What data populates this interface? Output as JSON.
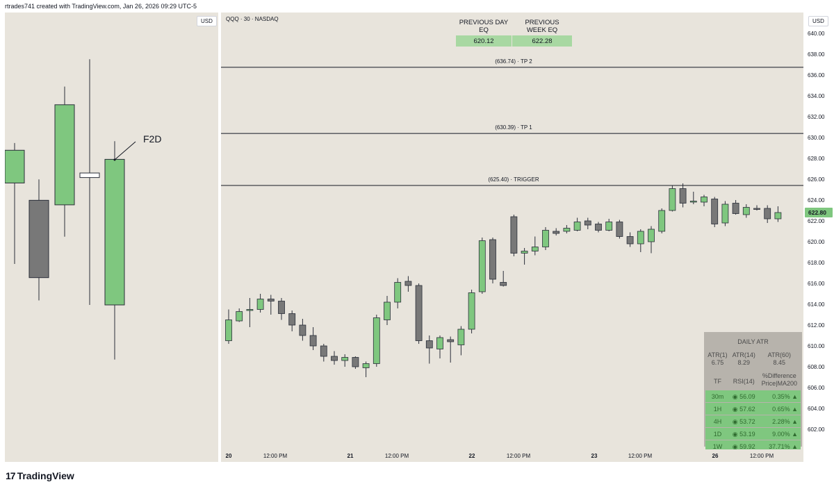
{
  "header": {
    "attribution": "rtrades741 created with TradingView.com, Jan 26, 2026 09:29 UTC-5"
  },
  "left_pane": {
    "currency": "USD",
    "annotation": "F2D",
    "candles": [
      {
        "o": 623.4,
        "h": 627.8,
        "l": 614.5,
        "c": 627.0
      },
      {
        "o": 621.5,
        "h": 623.8,
        "l": 610.5,
        "c": 613.0
      },
      {
        "o": 621.0,
        "h": 634.0,
        "l": 617.5,
        "c": 632.0
      },
      {
        "o": 624.0,
        "h": 637.0,
        "l": 610.0,
        "c": 624.5
      },
      {
        "o": 610.0,
        "h": 628.0,
        "l": 604.0,
        "c": 626.0
      }
    ]
  },
  "main_chart": {
    "symbol": "QQQ · 30 · NASDAQ",
    "currency": "USD",
    "current_price": "622.80"
  },
  "eq_table": {
    "headers": [
      "PREVIOUS DAY EQ",
      "PREVIOUS WEEK EQ"
    ],
    "values": [
      "620.12",
      "622.28"
    ]
  },
  "stats_table": {
    "title": "DAILY ATR",
    "atr_labels": [
      "ATR(1)",
      "ATR(14)",
      "ATR(60)"
    ],
    "atr_values": [
      "6.75",
      "8.29",
      "8.45"
    ],
    "col_headers": [
      "TF",
      "RSI(14)",
      "%Difference",
      "Price|MA200"
    ],
    "rows": [
      {
        "tf": "30m",
        "rsi": "◉ 56.09",
        "diff": "0.35% ▲"
      },
      {
        "tf": "1H",
        "rsi": "◉ 57.62",
        "diff": "0.65% ▲"
      },
      {
        "tf": "4H",
        "rsi": "◉ 53.72",
        "diff": "2.28% ▲"
      },
      {
        "tf": "1D",
        "rsi": "◉ 53.19",
        "diff": "9.00% ▲"
      },
      {
        "tf": "1W",
        "rsi": "◉ 59.92",
        "diff": "37.71% ▲"
      }
    ]
  },
  "branding": {
    "logo_text": "TradingView",
    "logo_mark": "17"
  },
  "chart_data": {
    "type": "candlestick",
    "title": "QQQ · 30 · NASDAQ",
    "ylim": [
      600,
      641
    ],
    "y_ticks": [
      "640.00",
      "638.00",
      "636.00",
      "634.00",
      "632.00",
      "630.00",
      "628.00",
      "626.00",
      "624.00",
      "622.00",
      "620.00",
      "618.00",
      "616.00",
      "614.00",
      "612.00",
      "610.00",
      "608.00",
      "606.00",
      "604.00",
      "602.00"
    ],
    "x_ticks": [
      "20",
      "12:00 PM",
      "21",
      "12:00 PM",
      "22",
      "12:00 PM",
      "23",
      "12:00 PM",
      "26",
      "12:00 PM"
    ],
    "levels": [
      {
        "label": "(636.74) · TP 2",
        "value": 636.74
      },
      {
        "label": "(630.39) · TP 1",
        "value": 630.39
      },
      {
        "label": "(625.40) · TRIGGER",
        "value": 625.4
      }
    ],
    "colors": {
      "up": "#7fc77f",
      "down": "#787878",
      "level": "#131722",
      "bg": "#e8e4dc"
    },
    "candles": [
      {
        "o": 610.5,
        "h": 613.5,
        "l": 610.2,
        "c": 612.5
      },
      {
        "o": 612.4,
        "h": 613.6,
        "l": 612.3,
        "c": 613.3
      },
      {
        "o": 613.4,
        "h": 614.6,
        "l": 611.8,
        "c": 613.5
      },
      {
        "o": 613.5,
        "h": 615.0,
        "l": 613.2,
        "c": 614.5
      },
      {
        "o": 614.5,
        "h": 614.9,
        "l": 613.0,
        "c": 614.3
      },
      {
        "o": 614.3,
        "h": 614.6,
        "l": 612.5,
        "c": 613.1
      },
      {
        "o": 613.1,
        "h": 613.4,
        "l": 611.4,
        "c": 612.0
      },
      {
        "o": 612.0,
        "h": 612.6,
        "l": 610.5,
        "c": 611.0
      },
      {
        "o": 611.0,
        "h": 611.8,
        "l": 609.6,
        "c": 610.0
      },
      {
        "o": 610.0,
        "h": 610.2,
        "l": 608.5,
        "c": 609.0
      },
      {
        "o": 609.0,
        "h": 609.5,
        "l": 608.2,
        "c": 608.6
      },
      {
        "o": 608.6,
        "h": 609.2,
        "l": 608.0,
        "c": 608.9
      },
      {
        "o": 608.9,
        "h": 609.0,
        "l": 607.8,
        "c": 608.0
      },
      {
        "o": 607.9,
        "h": 608.5,
        "l": 607.0,
        "c": 608.3
      },
      {
        "o": 608.3,
        "h": 613.0,
        "l": 608.0,
        "c": 612.7
      },
      {
        "o": 612.5,
        "h": 614.8,
        "l": 612.0,
        "c": 614.2
      },
      {
        "o": 614.2,
        "h": 616.5,
        "l": 613.6,
        "c": 616.1
      },
      {
        "o": 616.2,
        "h": 616.7,
        "l": 615.2,
        "c": 615.8
      },
      {
        "o": 615.8,
        "h": 616.0,
        "l": 610.2,
        "c": 610.5
      },
      {
        "o": 610.5,
        "h": 611.0,
        "l": 608.3,
        "c": 609.8
      },
      {
        "o": 609.7,
        "h": 611.0,
        "l": 608.8,
        "c": 610.8
      },
      {
        "o": 610.6,
        "h": 610.9,
        "l": 608.4,
        "c": 610.4
      },
      {
        "o": 610.1,
        "h": 611.9,
        "l": 609.1,
        "c": 611.6
      },
      {
        "o": 611.6,
        "h": 615.4,
        "l": 611.2,
        "c": 615.1
      },
      {
        "o": 615.2,
        "h": 620.4,
        "l": 615.0,
        "c": 620.1
      },
      {
        "o": 620.2,
        "h": 620.4,
        "l": 616.0,
        "c": 616.4
      },
      {
        "o": 616.1,
        "h": 617.2,
        "l": 615.7,
        "c": 615.8
      },
      {
        "o": 622.4,
        "h": 622.6,
        "l": 618.6,
        "c": 618.9
      },
      {
        "o": 618.9,
        "h": 619.4,
        "l": 617.8,
        "c": 619.1
      },
      {
        "o": 619.1,
        "h": 620.5,
        "l": 618.7,
        "c": 619.5
      },
      {
        "o": 619.5,
        "h": 621.4,
        "l": 619.2,
        "c": 621.1
      },
      {
        "o": 621.0,
        "h": 621.3,
        "l": 620.6,
        "c": 620.8
      },
      {
        "o": 621.0,
        "h": 621.6,
        "l": 620.8,
        "c": 621.3
      },
      {
        "o": 621.1,
        "h": 622.3,
        "l": 621.0,
        "c": 621.9
      },
      {
        "o": 622.0,
        "h": 622.3,
        "l": 621.2,
        "c": 621.6
      },
      {
        "o": 621.7,
        "h": 621.9,
        "l": 620.9,
        "c": 621.1
      },
      {
        "o": 621.1,
        "h": 622.2,
        "l": 621.0,
        "c": 621.9
      },
      {
        "o": 621.9,
        "h": 622.1,
        "l": 620.3,
        "c": 620.5
      },
      {
        "o": 620.5,
        "h": 620.9,
        "l": 619.5,
        "c": 619.8
      },
      {
        "o": 619.8,
        "h": 621.2,
        "l": 619.0,
        "c": 621.0
      },
      {
        "o": 620.0,
        "h": 621.5,
        "l": 618.9,
        "c": 621.2
      },
      {
        "o": 621.0,
        "h": 623.2,
        "l": 620.8,
        "c": 623.0
      },
      {
        "o": 623.0,
        "h": 625.4,
        "l": 622.9,
        "c": 625.1
      },
      {
        "o": 625.1,
        "h": 625.6,
        "l": 623.3,
        "c": 623.7
      },
      {
        "o": 623.8,
        "h": 624.8,
        "l": 623.6,
        "c": 623.9
      },
      {
        "o": 623.8,
        "h": 624.5,
        "l": 623.4,
        "c": 624.3
      },
      {
        "o": 624.1,
        "h": 624.3,
        "l": 621.4,
        "c": 621.7
      },
      {
        "o": 621.8,
        "h": 623.9,
        "l": 621.5,
        "c": 623.6
      },
      {
        "o": 623.7,
        "h": 624.0,
        "l": 622.6,
        "c": 622.7
      },
      {
        "o": 622.6,
        "h": 623.6,
        "l": 622.3,
        "c": 623.3
      },
      {
        "o": 623.2,
        "h": 623.5,
        "l": 623.0,
        "c": 623.1
      },
      {
        "o": 623.2,
        "h": 623.5,
        "l": 621.8,
        "c": 622.2
      },
      {
        "o": 622.2,
        "h": 623.4,
        "l": 621.9,
        "c": 622.8
      }
    ]
  }
}
